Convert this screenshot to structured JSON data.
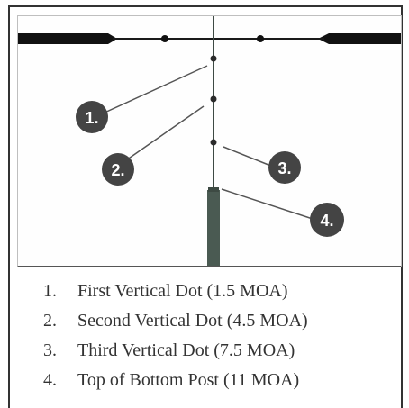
{
  "callouts": [
    {
      "id": "1",
      "label": "1."
    },
    {
      "id": "2",
      "label": "2."
    },
    {
      "id": "3",
      "label": "3."
    },
    {
      "id": "4",
      "label": "4."
    }
  ],
  "legend": [
    {
      "number": "1.",
      "text": "First Vertical Dot (1.5 MOA)"
    },
    {
      "number": "2.",
      "text": "Second Vertical Dot (4.5 MOA)"
    },
    {
      "number": "3.",
      "text": "Third Vertical Dot (7.5 MOA)"
    },
    {
      "number": "4.",
      "text": "Top of Bottom Post (11 MOA)"
    }
  ],
  "colors": {
    "reticle": "#1a1a1a",
    "post": "#4a5a52",
    "callout_fill": "#444444",
    "callout_text": "#ffffff",
    "leader": "#444444"
  }
}
